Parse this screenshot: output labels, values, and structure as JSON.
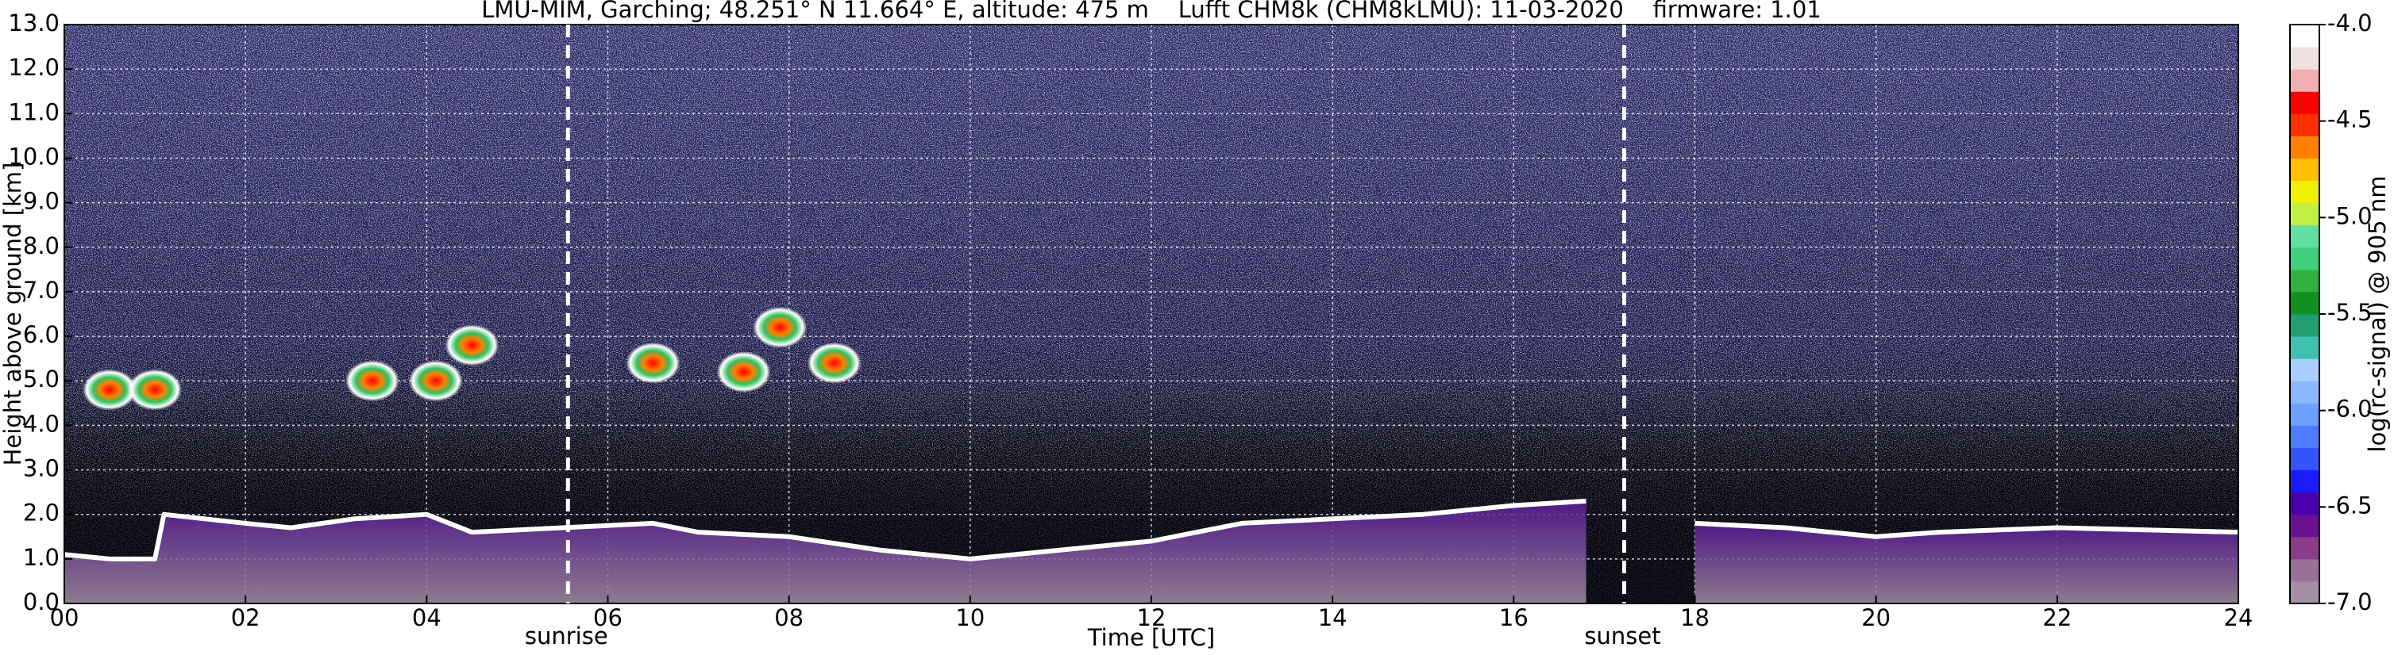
{
  "chart_data": {
    "type": "line",
    "title": "LMU-MIM, Garching; 48.251° N 11.664° E, altitude: 475 m    Lufft CHM8k (CHM8kLMU): 11-03-2020    firmware: 1.01",
    "xlabel": "Time [UTC]",
    "ylabel": "Height above ground [km]",
    "xlim": [
      0,
      24
    ],
    "xticks": [
      {
        "value": 0,
        "label": "00"
      },
      {
        "value": 2,
        "label": "02"
      },
      {
        "value": 4,
        "label": "04"
      },
      {
        "value": 6,
        "label": "06"
      },
      {
        "value": 8,
        "label": "08"
      },
      10,
      12,
      14,
      16,
      18,
      20,
      22,
      24
    ],
    "ylim": [
      0,
      13
    ],
    "yticks": [
      {
        "value": 0,
        "label": "0.0"
      },
      {
        "value": 1,
        "label": "1.0"
      },
      {
        "value": 2,
        "label": "2.0"
      },
      {
        "value": 3,
        "label": "3.0"
      },
      {
        "value": 4,
        "label": "4.0"
      },
      {
        "value": 5,
        "label": "5.0"
      },
      {
        "value": 6,
        "label": "6.0"
      },
      {
        "value": 7,
        "label": "7.0"
      },
      {
        "value": 8,
        "label": "8.0"
      },
      {
        "value": 9,
        "label": "9.0"
      },
      {
        "value": 10,
        "label": "10.0"
      },
      {
        "value": 11,
        "label": "11.0"
      },
      {
        "value": 12,
        "label": "12.0"
      },
      {
        "value": 13,
        "label": "13.0"
      }
    ],
    "grid": true,
    "x": [
      0,
      0.5,
      1.0,
      1.1,
      2.0,
      2.5,
      3.2,
      4.0,
      4.5,
      5.5,
      6.5,
      7.0,
      8.0,
      9.0,
      10.0,
      11.0,
      12.0,
      13.0,
      14.0,
      15.0,
      16.0,
      16.8,
      17.2,
      18.0,
      19.0,
      20.0,
      20.7,
      22.0,
      24.0
    ],
    "values": [
      1.1,
      1.0,
      1.0,
      2.0,
      1.8,
      1.7,
      1.9,
      2.0,
      1.6,
      1.7,
      1.8,
      1.6,
      1.5,
      1.2,
      1.0,
      1.2,
      1.4,
      1.8,
      1.9,
      2.0,
      2.2,
      2.3,
      null,
      1.8,
      1.7,
      1.5,
      1.6,
      1.7,
      1.6
    ],
    "color": "#ffffff",
    "fill_color": "#7a1f8c",
    "clouds": {
      "x": [
        0.5,
        1.0,
        3.4,
        4.1,
        4.5,
        6.5,
        7.5,
        7.9,
        8.5
      ],
      "y": [
        4.8,
        4.8,
        5.0,
        5.0,
        5.8,
        5.4,
        5.2,
        6.2,
        5.4
      ]
    },
    "vlines": [
      {
        "x": 5.56,
        "label": "sunrise"
      },
      {
        "x": 17.22,
        "label": "sunset"
      }
    ],
    "colorbar": {
      "label": "log(rc-signal) @ 905 nm",
      "lim": [
        -7,
        -4
      ],
      "ticks": [
        {
          "value": -4,
          "label": "-4.0"
        },
        {
          "value": -4.5,
          "label": "-4.5"
        },
        {
          "value": -5,
          "label": "-5.0"
        },
        {
          "value": -5.5,
          "label": "-5.5"
        },
        {
          "value": -6,
          "label": "-6.0"
        },
        {
          "value": -6.5,
          "label": "-6.5"
        },
        {
          "value": -7,
          "label": "-7.0"
        }
      ],
      "colors": [
        "#a48ea4",
        "#9a709a",
        "#8a3d8a",
        "#6a0f8f",
        "#4b00b0",
        "#1a1aff",
        "#3355ff",
        "#4f7bff",
        "#6fa0ff",
        "#8ab8ff",
        "#a8cfff",
        "#40c0b0",
        "#20a070",
        "#109020",
        "#30b040",
        "#40d080",
        "#60e0a0",
        "#c0f040",
        "#f0f000",
        "#ffc000",
        "#ff8000",
        "#ff3000",
        "#ff0000",
        "#f0b0b0",
        "#f0e0e0",
        "#ffffff"
      ]
    }
  }
}
